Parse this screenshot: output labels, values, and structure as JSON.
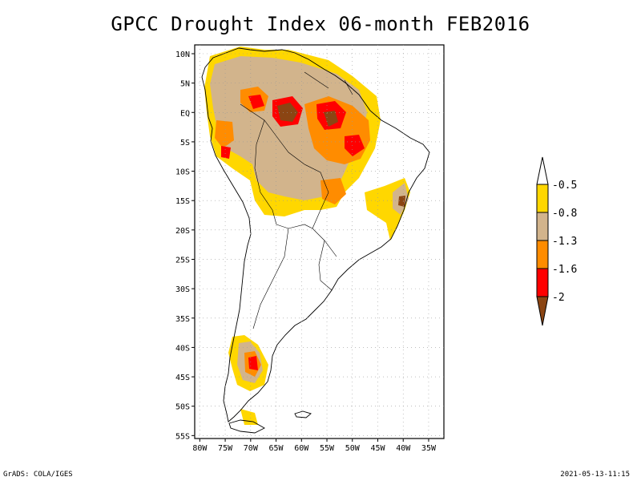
{
  "title": "GPCC Drought Index 06-month FEB2016",
  "footer": {
    "left": "GrADS: COLA/IGES",
    "right": "2021-05-13-11:15"
  },
  "axes": {
    "lat_labels": [
      "10N",
      "5N",
      "EQ",
      "5S",
      "10S",
      "15S",
      "20S",
      "25S",
      "30S",
      "35S",
      "40S",
      "45S",
      "50S",
      "55S"
    ],
    "lat_values": [
      10,
      5,
      0,
      -5,
      -10,
      -15,
      -20,
      -25,
      -30,
      -35,
      -40,
      -45,
      -50,
      -55
    ],
    "lon_labels": [
      "80W",
      "75W",
      "70W",
      "65W",
      "60W",
      "55W",
      "50W",
      "45W",
      "40W",
      "35W"
    ],
    "lon_values": [
      -80,
      -75,
      -70,
      -65,
      -60,
      -55,
      -50,
      -45,
      -40,
      -35
    ],
    "lat_range": [
      -55.5,
      11.5
    ],
    "lon_range": [
      -81,
      -32
    ]
  },
  "legend": {
    "labels": [
      "-0.5",
      "-0.8",
      "-1.3",
      "-1.6",
      "-2"
    ],
    "colors": [
      "#ffd700",
      "#d2b48c",
      "#ff8c00",
      "#ff0000",
      "#8b4513"
    ],
    "empty_color": "#ffffff"
  },
  "colors": {
    "yellow": "#ffd700",
    "tan": "#d2b48c",
    "orange": "#ff8c00",
    "red": "#ff0000",
    "brown": "#8b4513"
  }
}
